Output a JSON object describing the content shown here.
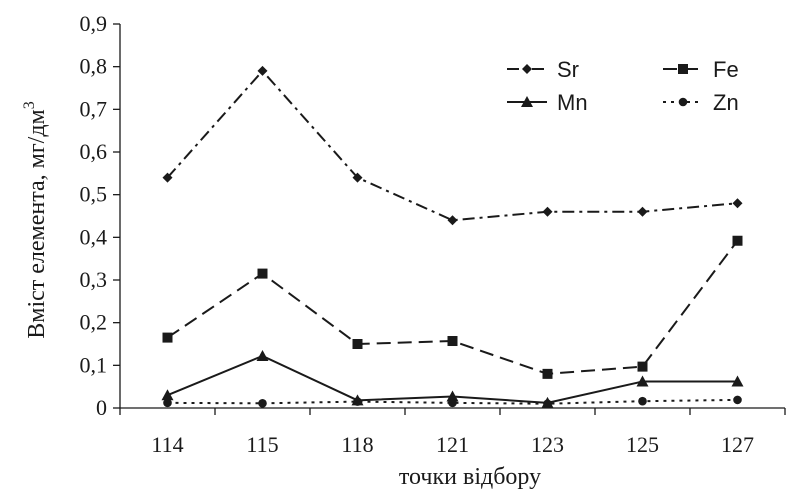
{
  "chart_data": {
    "type": "line",
    "categories": [
      "114",
      "115",
      "118",
      "121",
      "123",
      "125",
      "127"
    ],
    "series": [
      {
        "name": "Sr",
        "values": [
          0.54,
          0.79,
          0.54,
          0.44,
          0.46,
          0.46,
          0.48
        ],
        "marker": "diamond",
        "dash": "dash-dot",
        "color": "#1a1a1a"
      },
      {
        "name": "Fe",
        "values": [
          0.165,
          0.315,
          0.15,
          0.157,
          0.08,
          0.097,
          0.392
        ],
        "marker": "square",
        "dash": "dash",
        "color": "#1a1a1a"
      },
      {
        "name": "Mn",
        "values": [
          0.03,
          0.122,
          0.018,
          0.027,
          0.012,
          0.062,
          0.062
        ],
        "marker": "triangle",
        "dash": "solid",
        "color": "#1a1a1a"
      },
      {
        "name": "Zn",
        "values": [
          0.012,
          0.011,
          0.015,
          0.012,
          0.01,
          0.016,
          0.019
        ],
        "marker": "circle",
        "dash": "dot",
        "color": "#1a1a1a"
      }
    ],
    "xlabel": "точки відбору",
    "ylabel": "Вміст елемента, мг/дм",
    "ylabel_superscript": "3",
    "ylim": [
      0,
      0.9
    ],
    "yticks": [
      "0",
      "0,1",
      "0,2",
      "0,3",
      "0,4",
      "0,5",
      "0,6",
      "0,7",
      "0,8",
      "0,9"
    ],
    "grid": false,
    "legend_position": "top-right"
  }
}
